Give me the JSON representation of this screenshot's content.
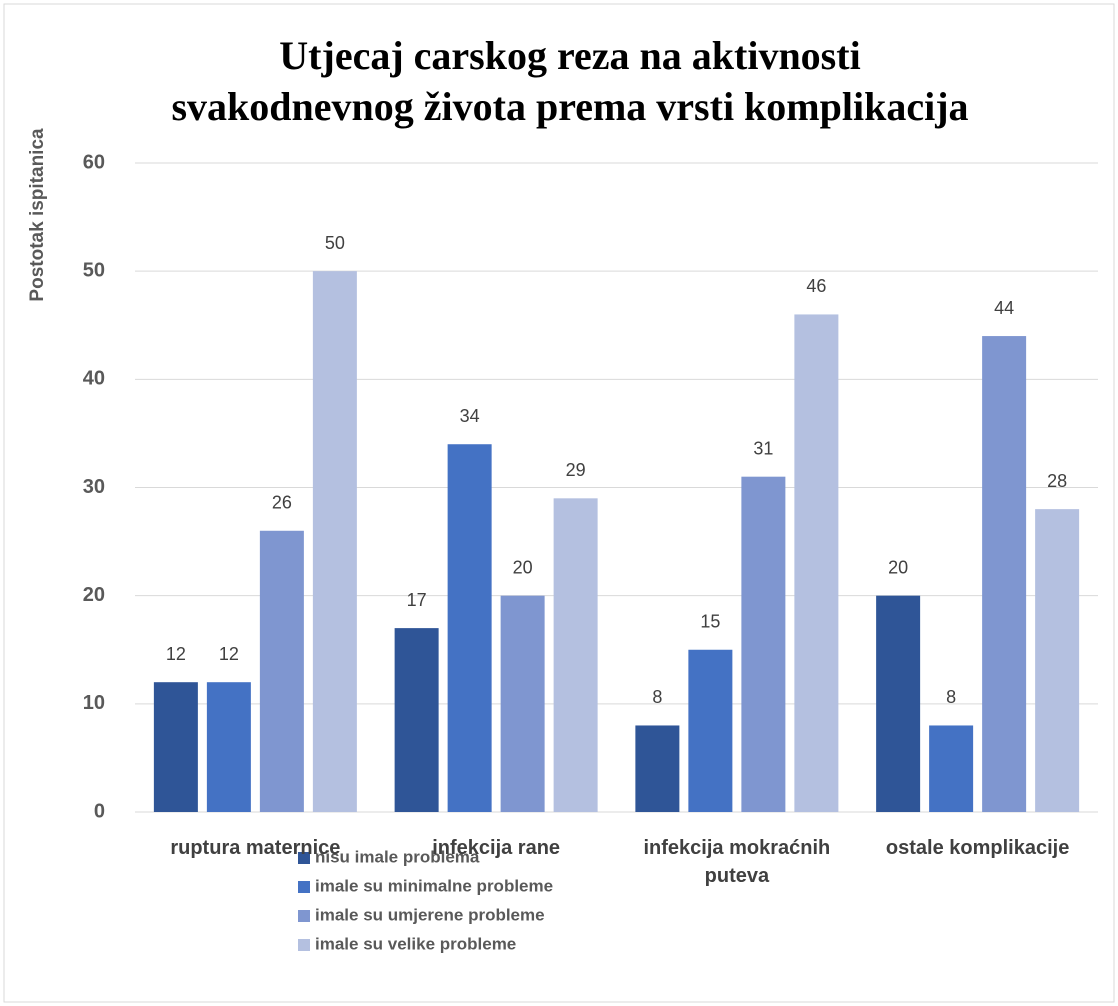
{
  "chart_data": {
    "type": "bar",
    "title": [
      "Utjecaj carskog reza na aktivnosti",
      "svakodnevnog života prema vrsti komplikacija"
    ],
    "y_label": "Postotak ispitanica",
    "categories": [
      "ruptura maternice",
      "infekcija rane",
      "infekcija mokraćnih puteva",
      "ostale komplikacije"
    ],
    "series": [
      {
        "name": "nisu imale problema",
        "color": "#2f5597",
        "values": [
          12,
          17,
          8,
          20
        ]
      },
      {
        "name": "imale su minimalne probleme",
        "color": "#4472c4",
        "values": [
          12,
          34,
          15,
          8
        ]
      },
      {
        "name": "imale su umjerene probleme",
        "color": "#7f96d0",
        "values": [
          26,
          20,
          31,
          44
        ]
      },
      {
        "name": "imale su velike probleme",
        "color": "#b4c0e0",
        "values": [
          50,
          29,
          46,
          28
        ]
      }
    ],
    "ylim": [
      0,
      60
    ],
    "yticks": [
      0,
      10,
      20,
      30,
      40,
      50,
      60
    ],
    "grid": true,
    "legend": "bottom"
  }
}
